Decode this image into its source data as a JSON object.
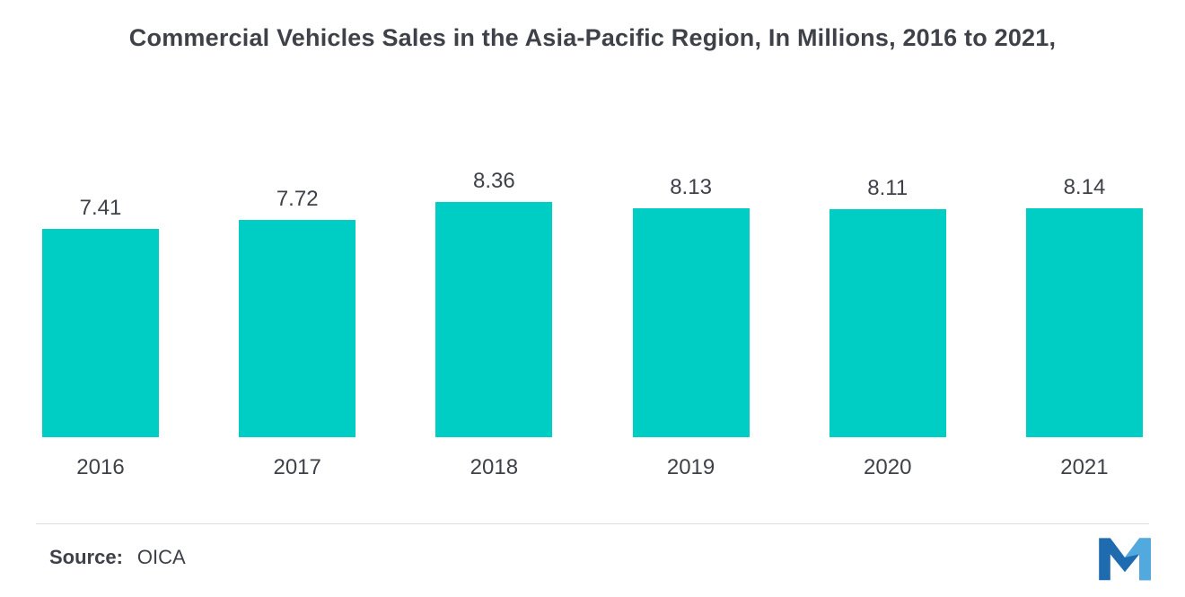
{
  "title": "Commercial Vehicles Sales in the Asia-Pacific Region, In Millions, 2016 to 2021,",
  "source": {
    "label": "Source:",
    "value": "OICA"
  },
  "chart_data": {
    "type": "bar",
    "categories": [
      "2016",
      "2017",
      "2018",
      "2019",
      "2020",
      "2021"
    ],
    "values": [
      7.41,
      7.72,
      8.36,
      8.13,
      8.11,
      8.14
    ],
    "title": "Commercial Vehicles Sales in the Asia-Pacific Region, In Millions, 2016 to 2021,",
    "xlabel": "",
    "ylabel": "",
    "ylim": [
      0,
      8.36
    ],
    "grid": false,
    "legend": "none",
    "value_labels": true,
    "bar_color": "#00CEC5"
  },
  "colors": {
    "background": "#FFFFFF",
    "bar": "#00CEC5",
    "text": "#3F4149",
    "divider": "#DCDCDC",
    "logo_dark": "#1E6BB0",
    "logo_light": "#52A9DE"
  }
}
